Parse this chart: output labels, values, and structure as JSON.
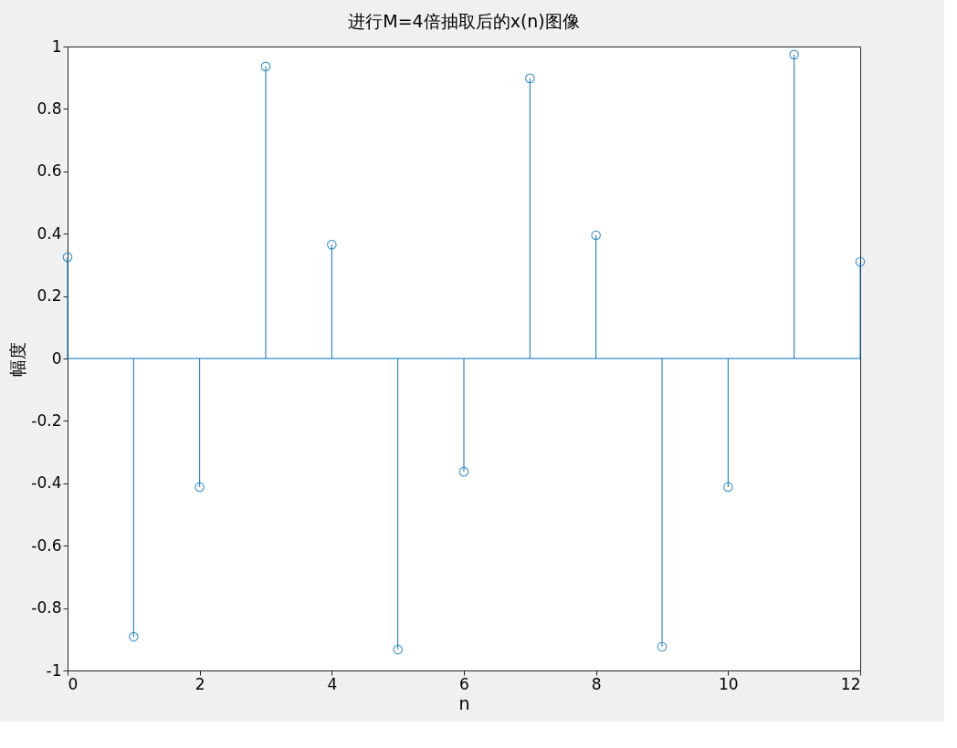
{
  "chart_data": {
    "type": "lollipop",
    "title": "进行M=4倍抽取后的x(n)图像",
    "xlabel": "n",
    "ylabel": "幅度",
    "x": [
      0,
      1,
      2,
      3,
      4,
      5,
      6,
      7,
      8,
      9,
      10,
      11,
      12
    ],
    "values": [
      0.325,
      -0.892,
      -0.412,
      0.936,
      0.365,
      -0.933,
      -0.363,
      0.898,
      0.395,
      -0.924,
      -0.412,
      0.974,
      0.31
    ],
    "color": "#0072bd",
    "marker": "circle",
    "xlim": [
      0,
      12
    ],
    "xticks": [
      0,
      2,
      4,
      6,
      8,
      10,
      12
    ],
    "ylim": [
      -1,
      1
    ],
    "yticks": [
      -1,
      -0.8,
      -0.6,
      -0.4,
      -0.2,
      0,
      0.2,
      0.4,
      0.6,
      0.8,
      1
    ],
    "ref_lines": [
      {
        "axis": "y",
        "value": 0,
        "color": "#0072bd"
      }
    ],
    "grid": false
  }
}
